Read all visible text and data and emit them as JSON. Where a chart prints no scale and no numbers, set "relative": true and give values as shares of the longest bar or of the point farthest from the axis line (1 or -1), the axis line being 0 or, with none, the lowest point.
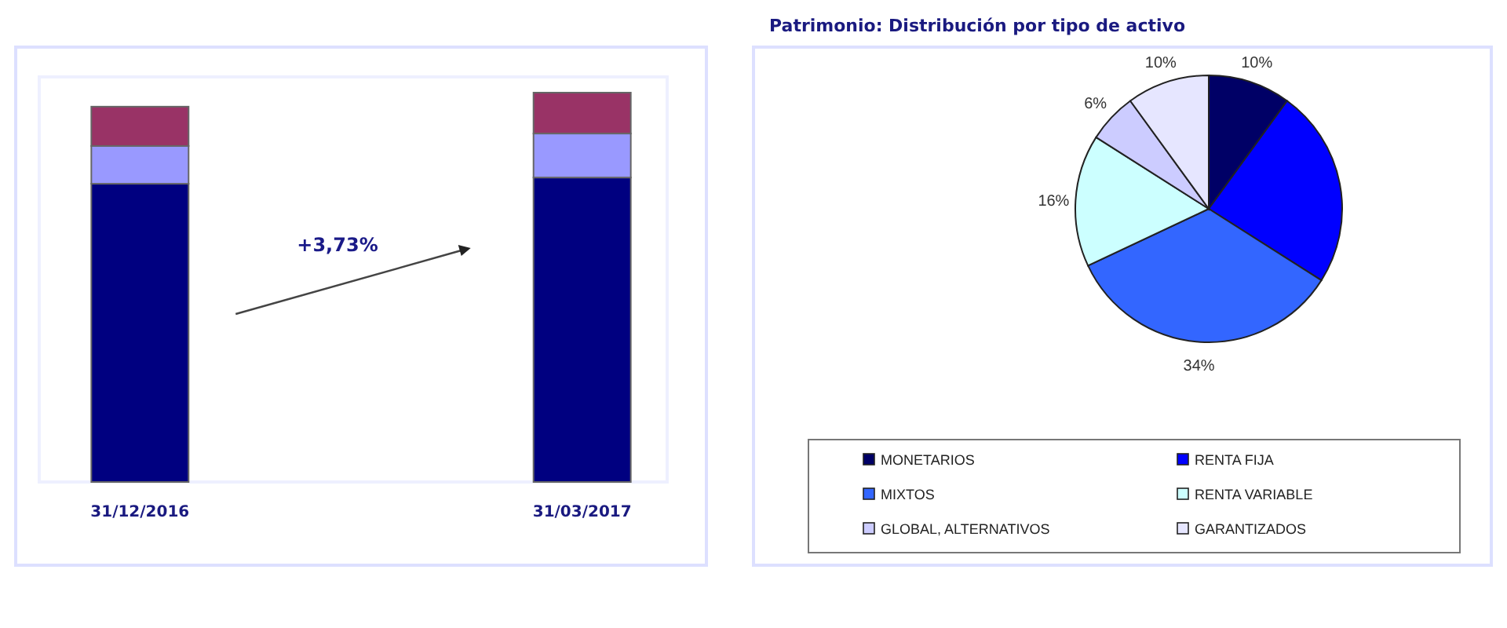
{
  "chart_data": [
    {
      "type": "bar",
      "stacked": true,
      "relative": true,
      "categories": [
        "31/12/2016",
        "31/03/2017"
      ],
      "series": [
        {
          "color": "#000080",
          "values": [
            0.766,
            0.782
          ]
        },
        {
          "color": "#9999ff",
          "values": [
            0.097,
            0.113
          ]
        },
        {
          "color": "#993366",
          "values": [
            0.101,
            0.105
          ]
        }
      ],
      "annotations": [
        "+3,73%"
      ]
    },
    {
      "type": "pie",
      "title": "Patrimonio: Distribución por tipo de activo",
      "categories": [
        "MONETARIOS",
        "RENTA FIJA",
        "MIXTOS",
        "RENTA VARIABLE",
        "GLOBAL, ALTERNATIVOS",
        "GARANTIZADOS"
      ],
      "values": [
        10,
        24,
        34,
        16,
        6,
        10
      ],
      "colors": [
        "#000066",
        "#0000ff",
        "#3366ff",
        "#ccffff",
        "#ccccff",
        "#e6e6ff"
      ],
      "value_labels": [
        "10%",
        null,
        "34%",
        "16%",
        "6%",
        "10%"
      ],
      "legend": "bottom"
    }
  ]
}
